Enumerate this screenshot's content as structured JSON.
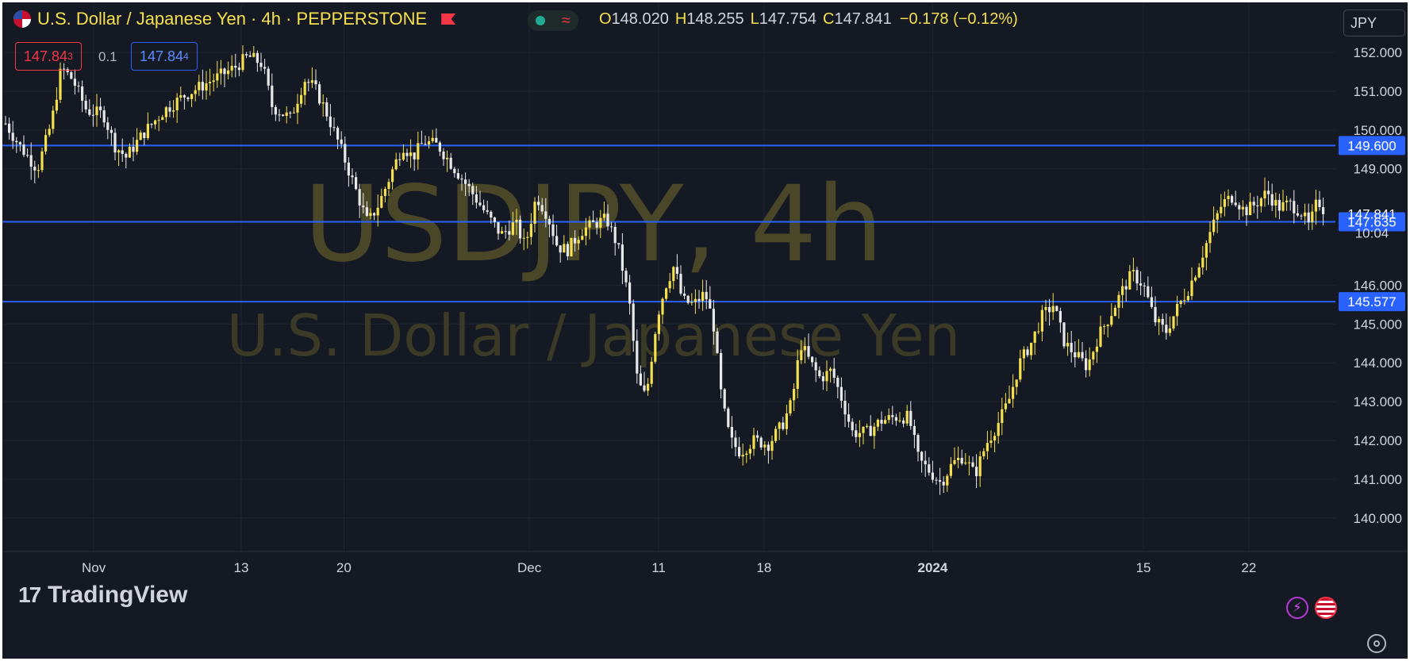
{
  "header": {
    "title": "U.S. Dollar / Japanese Yen · 4h · PEPPERSTONE",
    "ohlc": {
      "o_label": "O",
      "o": "148.020",
      "h_label": "H",
      "h": "148.255",
      "l_label": "L",
      "l": "147.754",
      "c_label": "C",
      "c": "147.841",
      "change": "−0.178 (−0.12%)"
    },
    "sell_price": "147.84",
    "sell_sup": "3",
    "spread": "0.1",
    "buy_price": "147.84",
    "buy_sup": "4",
    "currency": "JPY"
  },
  "watermark": {
    "symbol": "USDJPY, 4h",
    "name": "U.S. Dollar / Japanese Yen"
  },
  "branding": {
    "logo_text": "TradingView"
  },
  "icons": {
    "bolt": "lightning-icon",
    "flag": "us-flag-icon",
    "settings": "settings-icon",
    "currency_flag": "us-flag-icon",
    "alert": "red-flag-icon"
  },
  "colors": {
    "background": "#151924",
    "up": "#f4e04d",
    "down": "#e8e8e8",
    "hline": "#2962ff",
    "label_bg": "#2962ff",
    "text": "#d1d4dc"
  },
  "chart_data": {
    "type": "candlestick",
    "symbol": "USDJPY",
    "interval": "4h",
    "ylim": [
      139.1,
      152.7
    ],
    "yticks": [
      "152.000",
      "151.000",
      "150.000",
      "149.000",
      "146.000",
      "145.000",
      "144.000",
      "143.000",
      "142.000",
      "141.000",
      "140.000"
    ],
    "xticks": [
      {
        "label": "Nov",
        "t": 0.065
      },
      {
        "label": "13",
        "t": 0.17
      },
      {
        "label": "20",
        "t": 0.243
      },
      {
        "label": "Dec",
        "t": 0.375
      },
      {
        "label": "11",
        "t": 0.467
      },
      {
        "label": "18",
        "t": 0.542
      },
      {
        "label": "2024",
        "t": 0.662,
        "bold": true
      },
      {
        "label": "15",
        "t": 0.812
      },
      {
        "label": "22",
        "t": 0.887
      }
    ],
    "hlines": [
      {
        "price": 149.6,
        "label": "149.600"
      },
      {
        "price": 147.635,
        "label": "147.635"
      },
      {
        "price": 145.577,
        "label": "145.577"
      }
    ],
    "last": {
      "price": 147.841,
      "label": "147.841",
      "countdown": "10:04"
    },
    "price_path": [
      [
        0.0,
        150.3
      ],
      [
        0.012,
        149.6
      ],
      [
        0.025,
        149.0
      ],
      [
        0.035,
        150.2
      ],
      [
        0.042,
        151.6
      ],
      [
        0.05,
        151.3
      ],
      [
        0.06,
        150.5
      ],
      [
        0.072,
        150.4
      ],
      [
        0.08,
        149.6
      ],
      [
        0.088,
        149.3
      ],
      [
        0.1,
        149.9
      ],
      [
        0.115,
        150.5
      ],
      [
        0.13,
        150.9
      ],
      [
        0.15,
        151.3
      ],
      [
        0.165,
        151.6
      ],
      [
        0.175,
        151.9
      ],
      [
        0.185,
        151.7
      ],
      [
        0.192,
        150.6
      ],
      [
        0.205,
        150.3
      ],
      [
        0.215,
        151.3
      ],
      [
        0.222,
        151.1
      ],
      [
        0.23,
        150.5
      ],
      [
        0.24,
        149.6
      ],
      [
        0.25,
        148.6
      ],
      [
        0.26,
        147.6
      ],
      [
        0.268,
        148.1
      ],
      [
        0.278,
        149.0
      ],
      [
        0.285,
        149.6
      ],
      [
        0.292,
        149.3
      ],
      [
        0.3,
        149.7
      ],
      [
        0.31,
        149.6
      ],
      [
        0.32,
        149.1
      ],
      [
        0.332,
        148.5
      ],
      [
        0.345,
        147.8
      ],
      [
        0.355,
        147.3
      ],
      [
        0.365,
        147.6
      ],
      [
        0.372,
        147.0
      ],
      [
        0.38,
        148.3
      ],
      [
        0.388,
        147.8
      ],
      [
        0.395,
        147.0
      ],
      [
        0.402,
        146.9
      ],
      [
        0.412,
        147.4
      ],
      [
        0.422,
        147.6
      ],
      [
        0.43,
        147.7
      ],
      [
        0.438,
        147.0
      ],
      [
        0.446,
        145.6
      ],
      [
        0.452,
        143.5
      ],
      [
        0.458,
        143.1
      ],
      [
        0.466,
        145.2
      ],
      [
        0.472,
        146.0
      ],
      [
        0.478,
        146.5
      ],
      [
        0.484,
        145.6
      ],
      [
        0.492,
        145.5
      ],
      [
        0.5,
        145.8
      ],
      [
        0.506,
        145.0
      ],
      [
        0.512,
        143.0
      ],
      [
        0.518,
        142.0
      ],
      [
        0.525,
        141.7
      ],
      [
        0.535,
        142.0
      ],
      [
        0.545,
        141.9
      ],
      [
        0.555,
        142.4
      ],
      [
        0.562,
        143.0
      ],
      [
        0.568,
        144.5
      ],
      [
        0.575,
        144.0
      ],
      [
        0.582,
        143.6
      ],
      [
        0.59,
        143.8
      ],
      [
        0.598,
        143.0
      ],
      [
        0.605,
        142.2
      ],
      [
        0.615,
        142.2
      ],
      [
        0.625,
        142.5
      ],
      [
        0.635,
        142.6
      ],
      [
        0.645,
        142.6
      ],
      [
        0.652,
        141.5
      ],
      [
        0.66,
        141.2
      ],
      [
        0.668,
        140.9
      ],
      [
        0.676,
        141.4
      ],
      [
        0.684,
        141.6
      ],
      [
        0.692,
        141.1
      ],
      [
        0.7,
        141.9
      ],
      [
        0.708,
        142.4
      ],
      [
        0.716,
        143.0
      ],
      [
        0.724,
        144.0
      ],
      [
        0.732,
        144.5
      ],
      [
        0.74,
        145.2
      ],
      [
        0.748,
        145.5
      ],
      [
        0.756,
        144.5
      ],
      [
        0.764,
        144.2
      ],
      [
        0.772,
        143.9
      ],
      [
        0.78,
        144.7
      ],
      [
        0.788,
        145.2
      ],
      [
        0.796,
        145.8
      ],
      [
        0.804,
        146.3
      ],
      [
        0.812,
        146.0
      ],
      [
        0.82,
        145.1
      ],
      [
        0.828,
        144.8
      ],
      [
        0.836,
        145.4
      ],
      [
        0.844,
        145.9
      ],
      [
        0.852,
        146.6
      ],
      [
        0.86,
        147.4
      ],
      [
        0.868,
        148.1
      ],
      [
        0.876,
        148.3
      ],
      [
        0.884,
        147.9
      ],
      [
        0.892,
        148.1
      ],
      [
        0.9,
        148.4
      ],
      [
        0.908,
        148.0
      ],
      [
        0.916,
        148.1
      ],
      [
        0.924,
        147.9
      ],
      [
        0.93,
        147.5
      ],
      [
        0.936,
        148.2
      ],
      [
        0.942,
        147.841
      ]
    ]
  }
}
